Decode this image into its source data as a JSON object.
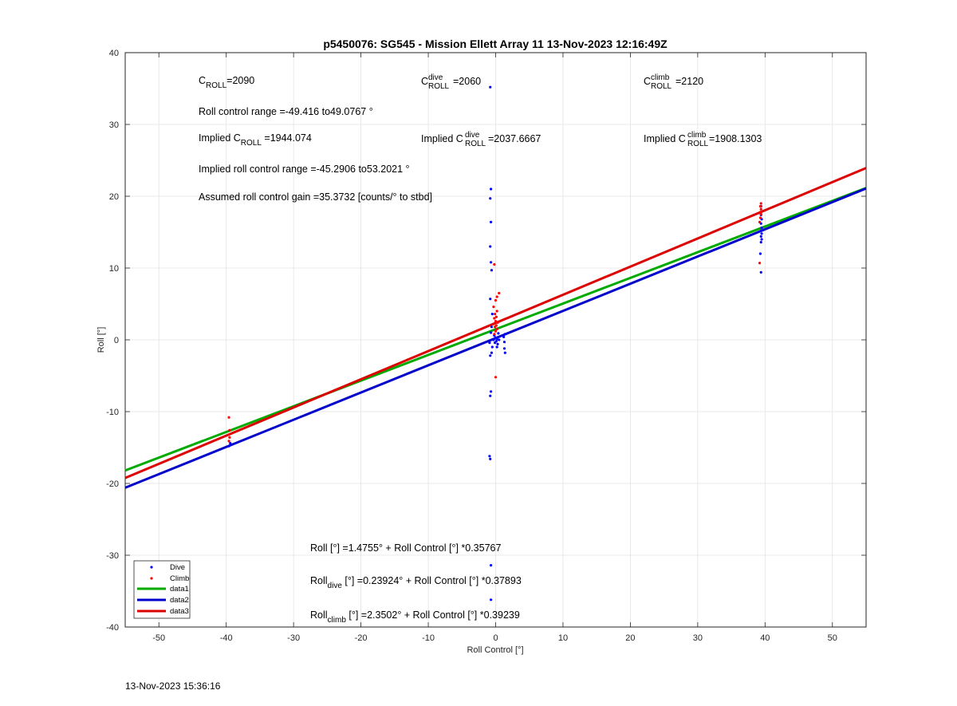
{
  "chart_data": {
    "type": "scatter",
    "title": "p5450076: SG545 - Mission Ellett Array 11 13-Nov-2023 12:16:49Z",
    "xlabel": "Roll Control [°]",
    "ylabel": "Roll [°]",
    "xlim": [
      -55,
      55
    ],
    "ylim": [
      -40,
      40
    ],
    "xticks": [
      -50,
      -40,
      -30,
      -20,
      -10,
      0,
      10,
      20,
      30,
      40,
      50
    ],
    "yticks": [
      -40,
      -30,
      -20,
      -10,
      0,
      10,
      20,
      30,
      40
    ],
    "grid": true,
    "legend_position": "bottom-left",
    "series": [
      {
        "name": "Dive",
        "kind": "points",
        "color": "#0000ff",
        "points": [
          [
            -0.8,
            35.2
          ],
          [
            -0.7,
            21.0
          ],
          [
            -0.8,
            19.7
          ],
          [
            -0.7,
            16.4
          ],
          [
            -0.8,
            13.0
          ],
          [
            -0.7,
            10.8
          ],
          [
            -0.6,
            9.7
          ],
          [
            -0.8,
            5.7
          ],
          [
            -0.5,
            3.6
          ],
          [
            -0.6,
            1.8
          ],
          [
            -0.7,
            1.0
          ],
          [
            -0.9,
            -0.4
          ],
          [
            -0.5,
            -1.0
          ],
          [
            -0.6,
            -1.8
          ],
          [
            -0.8,
            -2.2
          ],
          [
            0.0,
            0.3
          ],
          [
            0.1,
            -0.2
          ],
          [
            -0.2,
            0.6
          ],
          [
            0.3,
            -0.6
          ],
          [
            0.2,
            0.1
          ],
          [
            -0.1,
            -0.4
          ],
          [
            0.4,
            0.9
          ],
          [
            0.2,
            -1.0
          ],
          [
            0.5,
            0.0
          ],
          [
            -0.3,
            0.0
          ],
          [
            1.2,
            0.4
          ],
          [
            1.3,
            -0.3
          ],
          [
            1.3,
            -1.2
          ],
          [
            1.4,
            -1.8
          ],
          [
            1.4,
            0.8
          ],
          [
            -0.7,
            -7.2
          ],
          [
            -0.8,
            -7.8
          ],
          [
            -0.9,
            -16.2
          ],
          [
            -0.8,
            -16.6
          ],
          [
            -0.7,
            -31.4
          ],
          [
            -0.7,
            -36.2
          ],
          [
            39.4,
            18.6
          ],
          [
            39.4,
            17.4
          ],
          [
            39.5,
            16.8
          ],
          [
            39.4,
            16.2
          ],
          [
            39.5,
            15.6
          ],
          [
            39.4,
            15.2
          ],
          [
            39.5,
            14.8
          ],
          [
            39.4,
            14.4
          ],
          [
            39.5,
            14.0
          ],
          [
            39.4,
            13.6
          ],
          [
            39.3,
            12.0
          ],
          [
            39.4,
            9.4
          ],
          [
            -39.6,
            -14.8
          ],
          [
            -39.4,
            -14.4
          ]
        ]
      },
      {
        "name": "Climb",
        "kind": "points",
        "color": "#ff0000",
        "points": [
          [
            -0.2,
            10.5
          ],
          [
            0.5,
            6.5
          ],
          [
            0.2,
            6.0
          ],
          [
            0.0,
            5.5
          ],
          [
            -0.3,
            4.6
          ],
          [
            0.2,
            4.0
          ],
          [
            -0.1,
            3.6
          ],
          [
            0.1,
            3.2
          ],
          [
            -0.2,
            3.0
          ],
          [
            0.0,
            2.6
          ],
          [
            0.3,
            2.4
          ],
          [
            -0.3,
            2.2
          ],
          [
            0.1,
            2.0
          ],
          [
            -0.1,
            1.8
          ],
          [
            0.2,
            1.5
          ],
          [
            0.0,
            1.2
          ],
          [
            -0.2,
            0.8
          ],
          [
            0.0,
            -5.2
          ],
          [
            39.4,
            19.0
          ],
          [
            39.3,
            18.6
          ],
          [
            39.4,
            18.2
          ],
          [
            39.3,
            17.8
          ],
          [
            39.4,
            17.5
          ],
          [
            39.3,
            17.0
          ],
          [
            39.2,
            16.4
          ],
          [
            39.2,
            10.7
          ],
          [
            -39.6,
            -10.8
          ],
          [
            -39.5,
            -12.6
          ],
          [
            -39.6,
            -13.2
          ],
          [
            -39.5,
            -13.6
          ],
          [
            -39.6,
            -14.1
          ]
        ]
      },
      {
        "name": "data1",
        "kind": "line",
        "color": "#00aa00",
        "intercept": 1.4755,
        "slope": 0.35767
      },
      {
        "name": "data2",
        "kind": "line",
        "color": "#0000cc",
        "intercept": 0.23924,
        "slope": 0.37893
      },
      {
        "name": "data3",
        "kind": "line",
        "color": "#dd0000",
        "intercept": 2.3502,
        "slope": 0.39239
      }
    ]
  },
  "annotations": {
    "c_roll_main": "C",
    "c_roll_sub": "ROLL",
    "c_roll_value": "=2090",
    "c_dive_main": "C",
    "c_dive_sup": "dive",
    "c_dive_sub": "ROLL",
    "c_dive_value": "=2060",
    "c_climb_main": "C",
    "c_climb_sup": "climb",
    "c_climb_sub": "ROLL",
    "c_climb_value": "=2120",
    "range_text": "Roll control range =-49.416 to49.0767 °",
    "implied_label": "Implied C",
    "implied_sub": "ROLL",
    "implied_value": " =1944.074",
    "implied_dive_label": "Implied C",
    "implied_dive_sup": "dive",
    "implied_dive_sub": "ROLL",
    "implied_dive_value": "=2037.6667",
    "implied_climb_label": "Implied C",
    "implied_climb_sup": "climb",
    "implied_climb_sub": "ROLL",
    "implied_climb_value": " =1908.1303",
    "implied_range_text": "Implied roll control range =-45.2906 to53.2021 °",
    "gain_text": "Assumed roll control gain =35.3732 [counts/° to stbd]",
    "fit_all": "Roll [°] =1.4755° + Roll Control [°] *0.35767",
    "fit_dive_main": "Roll",
    "fit_dive_sub": "dive",
    "fit_dive_rest": " [°] =0.23924° + Roll Control [°] *0.37893",
    "fit_climb_main": "Roll",
    "fit_climb_sub": "climb",
    "fit_climb_rest": " [°] =2.3502° + Roll Control [°] *0.39239"
  },
  "timestamp": "13-Nov-2023 15:36:16"
}
